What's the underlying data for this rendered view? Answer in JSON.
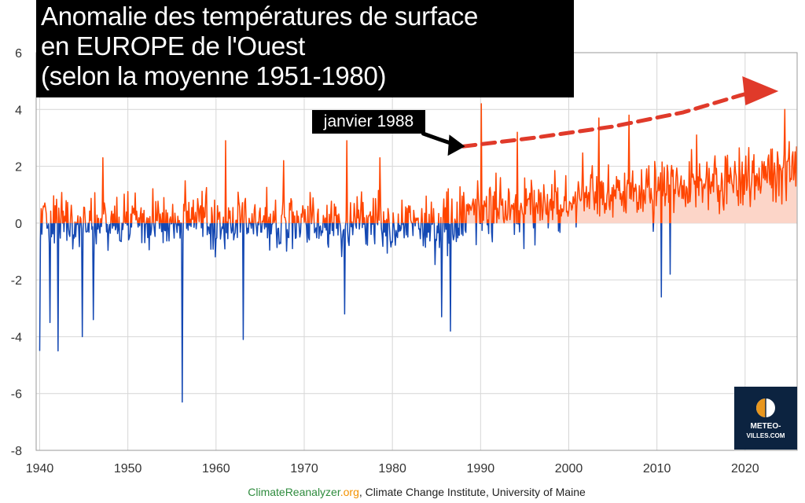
{
  "title": {
    "line1": "Anomalie des températures de surface",
    "line2": "en EUROPE de l'Ouest",
    "line3": "(selon la moyenne 1951-1980)"
  },
  "annotation": "janvier 1988",
  "source": {
    "site_a": "ClimateReanalyzer",
    "site_b": ".org",
    "rest": ", Climate Change Institute, University of Maine"
  },
  "logo": {
    "line1": "METEO-",
    "line2": "VILLES.COM"
  },
  "colors": {
    "positive": "#ff4500",
    "positive_fill": "#fcd5c8",
    "negative": "#1448b3",
    "trend_arrow": "#e03a2a",
    "title_bg": "#000000",
    "logo_bg": "#0c2340",
    "source_green": "#2e8b3d",
    "source_orange": "#f39200"
  },
  "chart_data": {
    "type": "line",
    "series": [
      {
        "values": []
      }
    ],
    "x_range": [
      1939.6,
      2025.9
    ],
    "ylim": [
      -8,
      6
    ],
    "yticks": [
      "6",
      "4",
      "2",
      "0",
      "-2",
      "-4",
      "-6",
      "-8"
    ],
    "xticks": [
      "1940",
      "1950",
      "1960",
      "1970",
      "1980",
      "1990",
      "2000",
      "2010",
      "2020"
    ],
    "grid": true,
    "fill_positive_after": 1988.0,
    "anchors": [
      [
        1940.0,
        -4.5
      ],
      [
        1940.4,
        0.6
      ],
      [
        1941.2,
        -3.5
      ],
      [
        1942.1,
        -4.5
      ],
      [
        1944.8,
        -4.0
      ],
      [
        1946.1,
        -3.4
      ],
      [
        1947.2,
        2.3
      ],
      [
        1956.2,
        -6.3
      ],
      [
        1961.1,
        2.9
      ],
      [
        1963.1,
        -4.1
      ],
      [
        1967.7,
        2.2
      ],
      [
        1974.8,
        2.9
      ],
      [
        1974.6,
        -3.2
      ],
      [
        1978.6,
        2.3
      ],
      [
        1985.6,
        -3.3
      ],
      [
        1986.6,
        -3.8
      ],
      [
        1990.1,
        4.2
      ],
      [
        1994.2,
        3.2
      ],
      [
        2003.4,
        3.7
      ],
      [
        2006.8,
        3.8
      ],
      [
        2010.5,
        -2.6
      ],
      [
        2011.5,
        -1.8
      ],
      [
        2014.5,
        3.1
      ],
      [
        2024.5,
        4.0
      ],
      [
        2025.8,
        2.7
      ]
    ],
    "trend_arrow": {
      "x": [
        1988.0,
        1996.0,
        2005.0,
        2013.0,
        2019.5,
        2022.0
      ],
      "y": [
        2.7,
        3.0,
        3.4,
        3.9,
        4.5,
        4.7
      ]
    },
    "annotation_arrow": {
      "x": [
        1983.5,
        1985.3,
        1987.7
      ],
      "y": [
        3.15,
        2.95,
        2.7
      ]
    }
  }
}
